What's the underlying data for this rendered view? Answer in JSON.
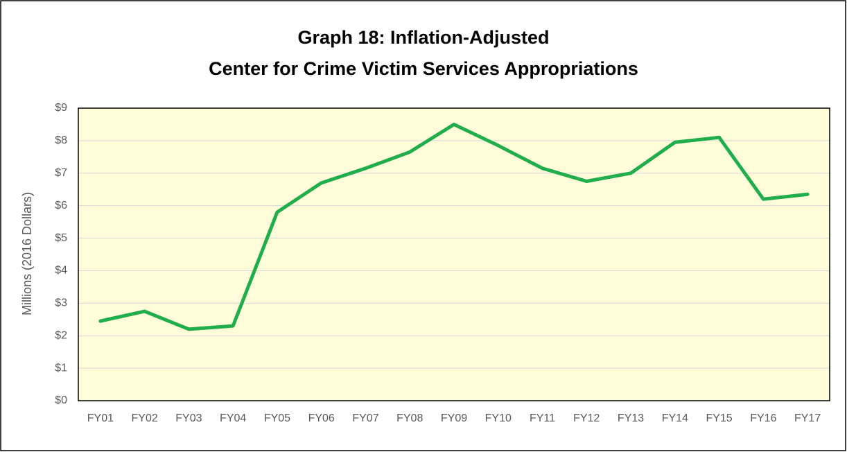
{
  "chart_data": {
    "type": "line",
    "title": [
      "Graph 18: Inflation-Adjusted",
      "Center for Crime Victim Services Appropriations"
    ],
    "y_label": "Millions (2016 Dollars)",
    "categories": [
      "FY01",
      "FY02",
      "FY03",
      "FY04",
      "FY05",
      "FY06",
      "FY07",
      "FY08",
      "FY09",
      "FY10",
      "FY11",
      "FY12",
      "FY13",
      "FY14",
      "FY15",
      "FY16",
      "FY17"
    ],
    "series": [
      {
        "name": "Appropriations",
        "color": "#1fae4b",
        "values": [
          2.45,
          2.75,
          2.2,
          2.3,
          5.8,
          6.7,
          7.15,
          7.65,
          8.5,
          7.85,
          7.15,
          6.75,
          7.0,
          7.95,
          8.1,
          6.2,
          6.35
        ]
      }
    ],
    "ylim": [
      0,
      9
    ],
    "yticks": [
      {
        "value": 0,
        "label": "$0"
      },
      {
        "value": 1,
        "label": "$1"
      },
      {
        "value": 2,
        "label": "$2"
      },
      {
        "value": 3,
        "label": "$3"
      },
      {
        "value": 4,
        "label": "$4"
      },
      {
        "value": 5,
        "label": "$5"
      },
      {
        "value": 6,
        "label": "$6"
      },
      {
        "value": 7,
        "label": "$7"
      },
      {
        "value": 8,
        "label": "$8"
      },
      {
        "value": 9,
        "label": "$9"
      }
    ],
    "grid": true,
    "background": "#fefcd9"
  }
}
